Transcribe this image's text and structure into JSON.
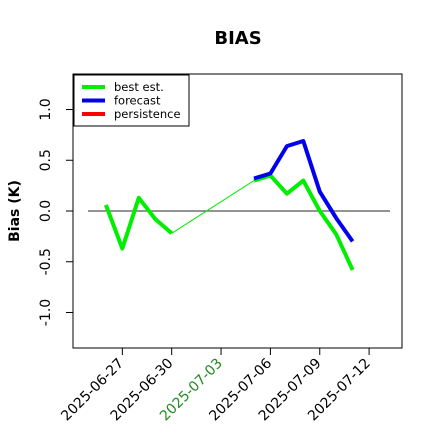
{
  "chart_data": {
    "type": "line",
    "title": "BIAS",
    "xlabel": "",
    "ylabel": "Bias (K)",
    "ylim": [
      -1.35,
      1.35
    ],
    "xlim": [
      "2025-06-24",
      "2025-07-14"
    ],
    "grid": false,
    "legend_position": "top-left",
    "y_ticks": [
      {
        "value": -1.0,
        "label": "-1.0"
      },
      {
        "value": -0.5,
        "label": "-0.5"
      },
      {
        "value": 0.0,
        "label": "0.0"
      },
      {
        "value": 0.5,
        "label": "0.5"
      },
      {
        "value": 1.0,
        "label": "1.0"
      }
    ],
    "x_ticks": [
      {
        "value": "2025-06-27",
        "label": "2025-06-27",
        "color": "#000000"
      },
      {
        "value": "2025-06-30",
        "label": "2025-06-30",
        "color": "#000000"
      },
      {
        "value": "2025-07-03",
        "label": "2025-07-03",
        "color": "#228b22"
      },
      {
        "value": "2025-07-06",
        "label": "2025-07-06",
        "color": "#000000"
      },
      {
        "value": "2025-07-09",
        "label": "2025-07-09",
        "color": "#000000"
      },
      {
        "value": "2025-07-12",
        "label": "2025-07-12",
        "color": "#000000"
      }
    ],
    "reference_line": {
      "y": 0.0,
      "color": "#555555"
    },
    "series": [
      {
        "name": "best est.",
        "color": "#00ee00",
        "segments": [
          {
            "x": [
              "2025-06-26",
              "2025-06-27",
              "2025-06-28",
              "2025-06-29",
              "2025-06-30"
            ],
            "y": [
              0.06,
              -0.37,
              0.13,
              -0.08,
              -0.22
            ],
            "style": "thick"
          },
          {
            "x": [
              "2025-06-30",
              "2025-07-05"
            ],
            "y": [
              -0.22,
              0.3
            ],
            "style": "thin"
          },
          {
            "x": [
              "2025-07-05",
              "2025-07-06",
              "2025-07-07",
              "2025-07-08",
              "2025-07-09",
              "2025-07-10",
              "2025-07-11"
            ],
            "y": [
              0.3,
              0.35,
              0.17,
              0.3,
              0.0,
              -0.23,
              -0.58
            ],
            "style": "thick"
          }
        ]
      },
      {
        "name": "forecast",
        "color": "#0000ee",
        "segments": [
          {
            "x": [
              "2025-07-05",
              "2025-07-06",
              "2025-07-07",
              "2025-07-08",
              "2025-07-09",
              "2025-07-10",
              "2025-07-11"
            ],
            "y": [
              0.32,
              0.37,
              0.64,
              0.69,
              0.19,
              -0.07,
              -0.3
            ],
            "style": "thick"
          }
        ]
      },
      {
        "name": "persistence",
        "color": "#ff0000",
        "segments": []
      }
    ]
  }
}
